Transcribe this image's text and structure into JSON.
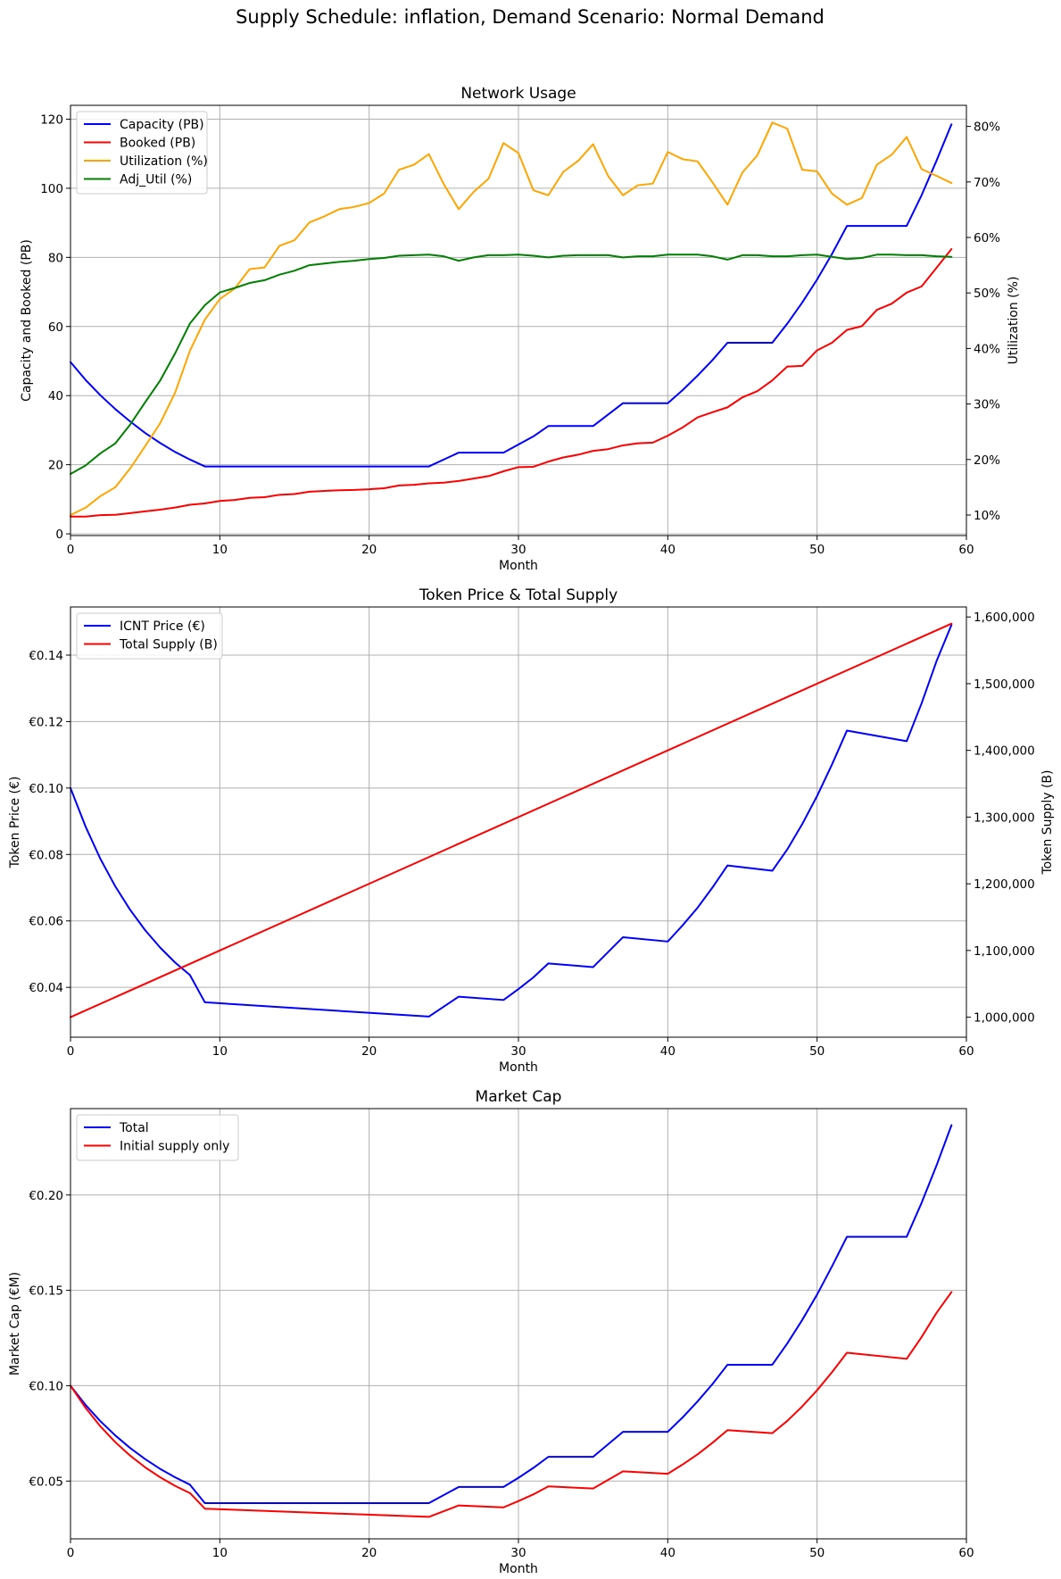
{
  "figure": {
    "title": "Supply Schedule: inflation, Demand Scenario: Normal Demand"
  },
  "chart_data": [
    {
      "type": "line",
      "title": "Network Usage",
      "xlabel": "Month",
      "ylabel": "Capacity and Booked (PB)",
      "y2label": "Utilization (%)",
      "xlim": [
        0,
        60
      ],
      "ylim": [
        -0.5,
        124
      ],
      "y2lim": [
        6.3,
        83.8
      ],
      "xticks": [
        0,
        10,
        20,
        30,
        40,
        50,
        60
      ],
      "xtick_labels": [
        "0",
        "10",
        "20",
        "30",
        "40",
        "50",
        "60"
      ],
      "yticks": [
        0,
        20,
        40,
        60,
        80,
        100,
        120
      ],
      "ytick_labels": [
        "0",
        "20",
        "40",
        "60",
        "80",
        "100",
        "120"
      ],
      "y2ticks": [
        10,
        20,
        30,
        40,
        50,
        60,
        70,
        80
      ],
      "y2tick_labels": [
        "10%",
        "20%",
        "30%",
        "40%",
        "50%",
        "60%",
        "70%",
        "80%"
      ],
      "legend_position": "upper-left",
      "series": [
        {
          "name": "Capacity (PB)",
          "color": "#0000ff",
          "axis": "left",
          "x": [
            0,
            1,
            2,
            3,
            4,
            5,
            6,
            7,
            8,
            9,
            10,
            12,
            15,
            20,
            24,
            26,
            29,
            31,
            32,
            35,
            37,
            40,
            41,
            42,
            43,
            44,
            47,
            48,
            49,
            50,
            51,
            52,
            54,
            56,
            57,
            58,
            59
          ],
          "values": [
            49.7,
            44.6,
            40.1,
            36.1,
            32.5,
            29.2,
            26.3,
            23.7,
            21.5,
            19.5,
            19.5,
            19.5,
            19.5,
            19.5,
            19.5,
            23.5,
            23.5,
            28.2,
            31.2,
            31.2,
            37.8,
            37.8,
            41.6,
            45.8,
            50.3,
            55.3,
            55.3,
            60.8,
            66.9,
            73.6,
            81.0,
            89.1,
            89.1,
            89.1,
            98.0,
            108.0,
            118.5
          ]
        },
        {
          "name": "Booked (PB)",
          "color": "#ff0000",
          "axis": "left",
          "x": [
            0,
            1,
            2,
            3,
            4,
            5,
            6,
            7,
            8,
            9,
            10,
            11,
            12,
            13,
            14,
            15,
            16,
            17,
            18,
            19,
            20,
            21,
            22,
            23,
            24,
            25,
            26,
            27,
            28,
            29,
            30,
            31,
            32,
            33,
            34,
            35,
            36,
            37,
            38,
            39,
            40,
            41,
            42,
            43,
            44,
            45,
            46,
            47,
            48,
            49,
            50,
            51,
            52,
            53,
            54,
            55,
            56,
            57,
            58,
            59
          ],
          "values": [
            5.0,
            5.0,
            5.4,
            5.5,
            6.0,
            6.5,
            7.0,
            7.6,
            8.4,
            8.8,
            9.5,
            9.8,
            10.4,
            10.6,
            11.3,
            11.5,
            12.2,
            12.4,
            12.6,
            12.7,
            12.9,
            13.2,
            14.0,
            14.2,
            14.6,
            14.8,
            15.3,
            16.0,
            16.7,
            18.1,
            19.3,
            19.4,
            20.9,
            22.1,
            22.9,
            24.0,
            24.5,
            25.6,
            26.2,
            26.4,
            28.4,
            30.8,
            33.7,
            35.2,
            36.6,
            39.5,
            41.3,
            44.4,
            48.4,
            48.6,
            53.1,
            55.3,
            59.0,
            60.1,
            64.8,
            66.6,
            69.8,
            71.6,
            77.0,
            82.4
          ]
        },
        {
          "name": "Utilization (%)",
          "color": "#ffa500",
          "axis": "right",
          "x": [
            0,
            1,
            2,
            3,
            4,
            5,
            6,
            7,
            8,
            9,
            10,
            11,
            12,
            13,
            14,
            15,
            16,
            17,
            18,
            19,
            20,
            21,
            22,
            23,
            24,
            25,
            26,
            27,
            28,
            29,
            30,
            31,
            32,
            33,
            34,
            35,
            36,
            37,
            38,
            39,
            40,
            41,
            42,
            43,
            44,
            45,
            46,
            47,
            48,
            49,
            50,
            51,
            52,
            53,
            54,
            55,
            56,
            57,
            58,
            59
          ],
          "values": [
            10.0,
            11.3,
            13.4,
            15.0,
            18.4,
            22.4,
            26.5,
            32.0,
            39.6,
            45.2,
            48.9,
            50.8,
            54.3,
            54.6,
            58.5,
            59.5,
            62.7,
            63.8,
            65.1,
            65.5,
            66.2,
            67.9,
            72.2,
            73.1,
            75.0,
            69.6,
            65.1,
            68.2,
            70.6,
            77.0,
            75.2,
            68.5,
            67.6,
            71.8,
            73.8,
            76.8,
            71.1,
            67.6,
            69.4,
            69.7,
            75.4,
            74.1,
            73.7,
            69.9,
            65.9,
            71.7,
            74.8,
            80.7,
            79.6,
            72.2,
            71.9,
            67.9,
            65.9,
            67.1,
            73.1,
            74.9,
            78.1,
            72.3,
            71.1,
            69.8
          ]
        },
        {
          "name": "Adj_Util (%)",
          "color": "#008000",
          "axis": "right",
          "x": [
            0,
            1,
            2,
            3,
            4,
            5,
            6,
            7,
            8,
            9,
            10,
            11,
            12,
            13,
            14,
            15,
            16,
            17,
            18,
            19,
            20,
            21,
            22,
            23,
            24,
            25,
            26,
            27,
            28,
            29,
            30,
            31,
            32,
            33,
            34,
            35,
            36,
            37,
            38,
            39,
            40,
            41,
            42,
            43,
            44,
            45,
            46,
            47,
            48,
            49,
            50,
            51,
            52,
            53,
            54,
            55,
            56,
            57,
            58,
            59
          ],
          "values": [
            17.4,
            18.9,
            21.1,
            22.9,
            26.3,
            30.3,
            34.2,
            39.1,
            44.5,
            47.8,
            50.1,
            50.9,
            51.8,
            52.3,
            53.3,
            54.0,
            55.0,
            55.3,
            55.6,
            55.8,
            56.1,
            56.3,
            56.7,
            56.8,
            56.9,
            56.6,
            55.8,
            56.4,
            56.8,
            56.8,
            56.9,
            56.7,
            56.4,
            56.7,
            56.8,
            56.8,
            56.8,
            56.4,
            56.6,
            56.6,
            56.9,
            56.9,
            56.9,
            56.6,
            56.0,
            56.8,
            56.8,
            56.6,
            56.6,
            56.8,
            56.9,
            56.5,
            56.1,
            56.3,
            56.9,
            56.9,
            56.8,
            56.8,
            56.6,
            56.5
          ]
        }
      ]
    },
    {
      "type": "line",
      "title": "Token Price & Total Supply",
      "xlabel": "Month",
      "ylabel": "Token Price (€)",
      "y2label": "Token Supply (B)",
      "xlim": [
        0,
        60
      ],
      "ylim": [
        0.025,
        0.1545
      ],
      "y2lim": [
        970000,
        1615000
      ],
      "xticks": [
        0,
        10,
        20,
        30,
        40,
        50,
        60
      ],
      "xtick_labels": [
        "0",
        "10",
        "20",
        "30",
        "40",
        "50",
        "60"
      ],
      "yticks": [
        0.04,
        0.06,
        0.08,
        0.1,
        0.12,
        0.14
      ],
      "ytick_labels": [
        "€0.04",
        "€0.06",
        "€0.08",
        "€0.10",
        "€0.12",
        "€0.14"
      ],
      "y2ticks": [
        1000000,
        1100000,
        1200000,
        1300000,
        1400000,
        1500000,
        1600000
      ],
      "y2tick_labels": [
        "1,000,000",
        "1,100,000",
        "1,200,000",
        "1,300,000",
        "1,400,000",
        "1,500,000",
        "1,600,000"
      ],
      "legend_position": "upper-left",
      "series": [
        {
          "name": "ICNT Price (€)",
          "color": "#0000ff",
          "axis": "left",
          "x": [
            0,
            1,
            2,
            3,
            4,
            5,
            6,
            7,
            8,
            9,
            24,
            26,
            29,
            30,
            31,
            32,
            35,
            37,
            40,
            41,
            42,
            43,
            44,
            47,
            48,
            49,
            50,
            51,
            52,
            56,
            57,
            58,
            59
          ],
          "values": [
            0.1,
            0.0885,
            0.0787,
            0.0704,
            0.0633,
            0.0572,
            0.052,
            0.0475,
            0.0437,
            0.0355,
            0.0312,
            0.0372,
            0.0362,
            0.0395,
            0.043,
            0.0472,
            0.0461,
            0.0551,
            0.0538,
            0.0587,
            0.064,
            0.0701,
            0.0767,
            0.0751,
            0.0815,
            0.0891,
            0.0976,
            0.1071,
            0.1173,
            0.1141,
            0.1255,
            0.1382,
            0.1491
          ]
        },
        {
          "name": "Total Supply (B)",
          "color": "#ff0000",
          "axis": "right",
          "x": [
            0,
            59
          ],
          "values": [
            1000000,
            1590000
          ]
        }
      ]
    },
    {
      "type": "line",
      "title": "Market Cap",
      "xlabel": "Month",
      "ylabel": "Market Cap (€M)",
      "xlim": [
        0,
        60
      ],
      "ylim": [
        0.0197,
        0.2453
      ],
      "xticks": [
        0,
        10,
        20,
        30,
        40,
        50,
        60
      ],
      "xtick_labels": [
        "0",
        "10",
        "20",
        "30",
        "40",
        "50",
        "60"
      ],
      "yticks": [
        0.05,
        0.1,
        0.15,
        0.2
      ],
      "ytick_labels": [
        "€0.05",
        "€0.10",
        "€0.15",
        "€0.20"
      ],
      "legend_position": "upper-left",
      "series": [
        {
          "name": "Total",
          "color": "#0000ff",
          "axis": "left",
          "x": [
            0,
            1,
            2,
            3,
            4,
            5,
            6,
            7,
            8,
            9,
            24,
            26,
            29,
            30,
            31,
            32,
            35,
            37,
            40,
            41,
            42,
            43,
            44,
            47,
            48,
            49,
            50,
            51,
            52,
            56,
            57,
            58,
            59
          ],
          "values": [
            0.1,
            0.09,
            0.0814,
            0.0739,
            0.0673,
            0.0615,
            0.0564,
            0.052,
            0.0481,
            0.0384,
            0.0384,
            0.0469,
            0.0469,
            0.0517,
            0.0569,
            0.0627,
            0.0627,
            0.0758,
            0.0758,
            0.0834,
            0.0918,
            0.1009,
            0.111,
            0.111,
            0.1221,
            0.1344,
            0.1478,
            0.1626,
            0.1781,
            0.1781,
            0.1959,
            0.2155,
            0.2366
          ]
        },
        {
          "name": "Initial supply only",
          "color": "#ff0000",
          "axis": "left",
          "x": [
            0,
            1,
            2,
            3,
            4,
            5,
            6,
            7,
            8,
            9,
            24,
            26,
            29,
            30,
            31,
            32,
            35,
            37,
            40,
            41,
            42,
            43,
            44,
            47,
            48,
            49,
            50,
            51,
            52,
            56,
            57,
            58,
            59
          ],
          "values": [
            0.1,
            0.0885,
            0.0787,
            0.0704,
            0.0633,
            0.0572,
            0.052,
            0.0475,
            0.0437,
            0.0355,
            0.0312,
            0.0372,
            0.0362,
            0.0395,
            0.043,
            0.0472,
            0.0461,
            0.0551,
            0.0538,
            0.0587,
            0.064,
            0.0701,
            0.0767,
            0.0751,
            0.0815,
            0.0891,
            0.0976,
            0.1071,
            0.1173,
            0.1141,
            0.1255,
            0.1382,
            0.1491
          ]
        }
      ]
    }
  ]
}
